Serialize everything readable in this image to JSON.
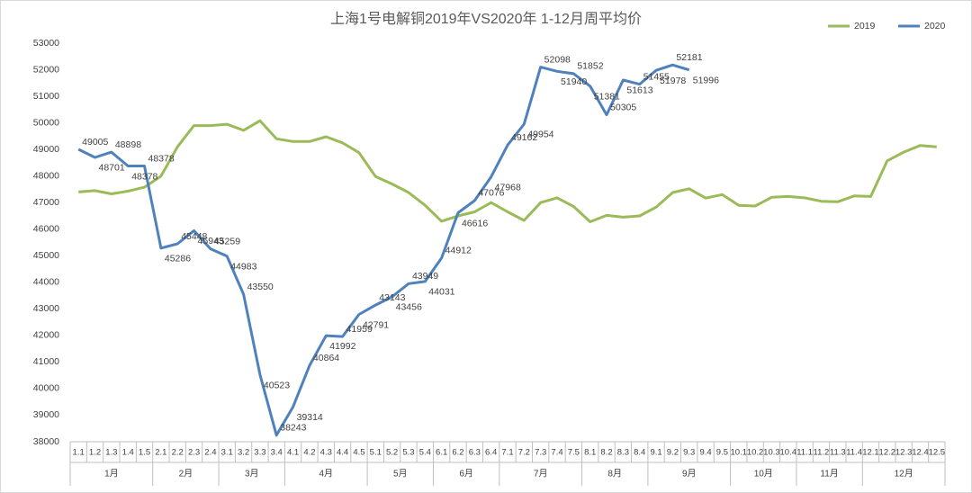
{
  "chart_data": {
    "type": "line",
    "title": "上海1号电解铜2019年VS2020年  1-12月周平均价",
    "categories": [
      "1.1",
      "1.2",
      "1.3",
      "1.4",
      "1.5",
      "2.1",
      "2.2",
      "2.3",
      "2.4",
      "3.1",
      "3.2",
      "3.3",
      "3.4",
      "4.1",
      "4.2",
      "4.3",
      "4.4",
      "4.5",
      "5.1",
      "5.2",
      "5.3",
      "5.4",
      "6.1",
      "6.2",
      "6.3",
      "6.4",
      "7.1",
      "7.2",
      "7.3",
      "7.4",
      "7.5",
      "8.1",
      "8.2",
      "8.3",
      "8.4",
      "9.1",
      "9.2",
      "9.3",
      "9.4",
      "9.5",
      "10.1",
      "10.2",
      "10.3",
      "10.4",
      "11.1",
      "11.2",
      "11.3",
      "11.4",
      "12.1",
      "12.2",
      "12.3",
      "12.4",
      "12.5"
    ],
    "month_labels": [
      "1月",
      "2月",
      "3月",
      "4月",
      "5月",
      "6月",
      "7月",
      "8月",
      "9月",
      "10月",
      "11月",
      "12月"
    ],
    "series": [
      {
        "name": "2019",
        "color": "#9bbb59",
        "values": [
          47400,
          47450,
          47330,
          47430,
          47580,
          48000,
          49100,
          49900,
          49900,
          49950,
          49720,
          50080,
          49400,
          49300,
          49300,
          49480,
          49250,
          48880,
          47980,
          47700,
          47380,
          46900,
          46300,
          46500,
          46650,
          47000,
          46650,
          46330,
          47000,
          47180,
          46850,
          46280,
          46520,
          46450,
          46500,
          46830,
          47380,
          47520,
          47170,
          47300,
          46900,
          46870,
          47200,
          47230,
          47180,
          47050,
          47030,
          47250,
          47230,
          48570,
          48900,
          49150,
          49100
        ]
      },
      {
        "name": "2020",
        "color": "#4f81bd",
        "values": [
          49005,
          48701,
          48898,
          48378,
          48378,
          45286,
          45448,
          45943,
          45259,
          44983,
          43550,
          40523,
          38243,
          39314,
          40864,
          41992,
          41959,
          42791,
          43143,
          43456,
          43949,
          44031,
          44912,
          46616,
          47076,
          47968,
          49162,
          49954,
          52098,
          51940,
          51852,
          51381,
          50305,
          51613,
          51455,
          51978,
          52181,
          51996,
          null,
          null,
          null,
          null,
          null,
          null,
          null,
          null,
          null,
          null,
          null,
          null,
          null,
          null,
          null
        ]
      }
    ],
    "ylim": [
      38000,
      53000
    ],
    "yticks": [
      38000,
      39000,
      40000,
      41000,
      42000,
      43000,
      44000,
      45000,
      46000,
      47000,
      48000,
      49000,
      50000,
      51000,
      52000,
      53000
    ],
    "grid": false,
    "legend": "top-right"
  }
}
